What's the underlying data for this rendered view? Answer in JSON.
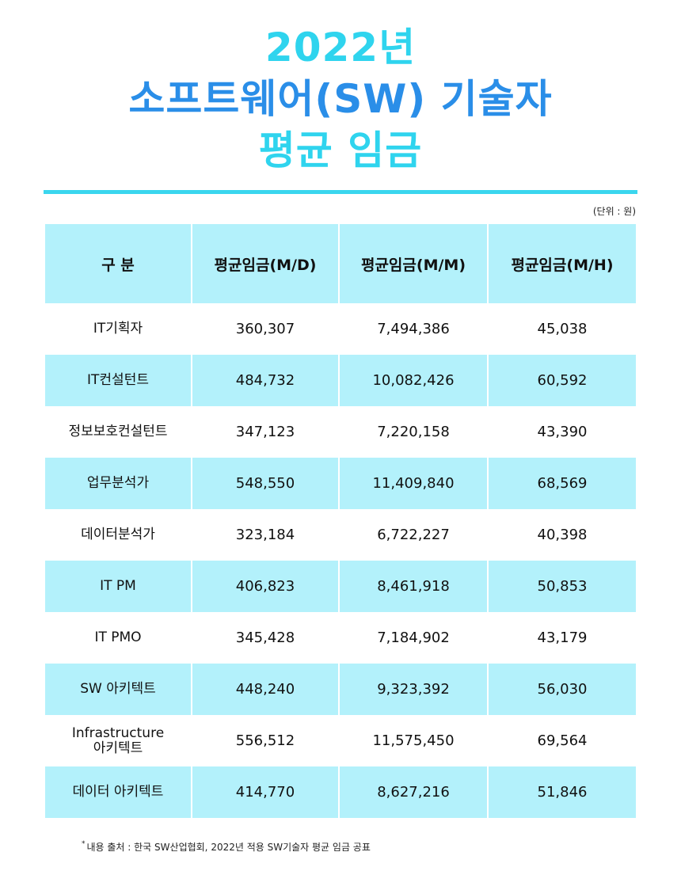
{
  "header": {
    "year_line": "2022년",
    "main_line": "소프트웨어(SW) 기술자",
    "sub_line": "평균 임금"
  },
  "unit_note": "(단위 : 원)",
  "table": {
    "columns": [
      "구 분",
      "평균임금(M/D)",
      "평균임금(M/M)",
      "평균임금(M/H)"
    ],
    "rows": [
      {
        "role": "IT기획자",
        "md": "360,307",
        "mm": "7,494,386",
        "mh": "45,038"
      },
      {
        "role": "IT컨설턴트",
        "md": "484,732",
        "mm": "10,082,426",
        "mh": "60,592"
      },
      {
        "role": "정보보호컨설턴트",
        "md": "347,123",
        "mm": "7,220,158",
        "mh": "43,390"
      },
      {
        "role": "업무분석가",
        "md": "548,550",
        "mm": "11,409,840",
        "mh": "68,569"
      },
      {
        "role": "데이터분석가",
        "md": "323,184",
        "mm": "6,722,227",
        "mh": "40,398"
      },
      {
        "role": "IT PM",
        "md": "406,823",
        "mm": "8,461,918",
        "mh": "50,853"
      },
      {
        "role": "IT PMO",
        "md": "345,428",
        "mm": "7,184,902",
        "mh": "43,179"
      },
      {
        "role": "SW 아키텍트",
        "md": "448,240",
        "mm": "9,323,392",
        "mh": "56,030"
      },
      {
        "role": "Infrastructure 아키텍트",
        "role_line1": "Infrastructure",
        "role_line2": "아키텍트",
        "md": "556,512",
        "mm": "11,575,450",
        "mh": "69,564"
      },
      {
        "role": "데이터 아키텍트",
        "md": "414,770",
        "mm": "8,627,216",
        "mh": "51,846"
      }
    ]
  },
  "footnote": {
    "mark": "*",
    "text": "내용 출처 : 한국 SW산업협회, 2022년 적용 SW기술자 평균 임금 공표"
  },
  "colors": {
    "title_cyan": "#2fd4ee",
    "title_blue": "#2a8ee8",
    "row_shade": "#b3f1fb",
    "rule": "#3ad6ee"
  }
}
